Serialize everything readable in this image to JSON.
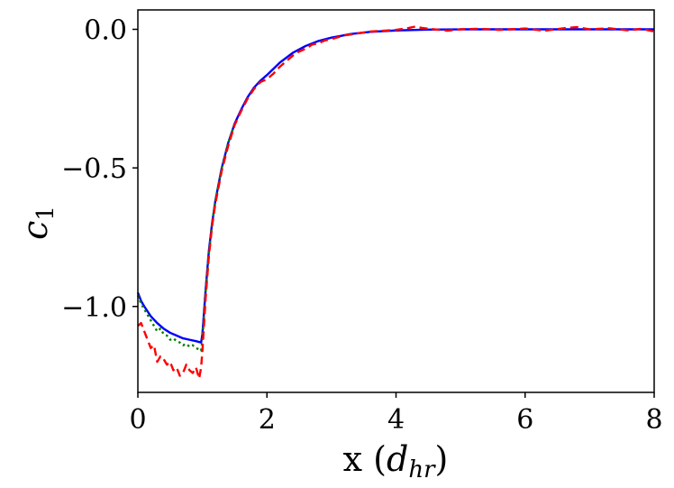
{
  "chart_data": {
    "type": "line",
    "xlabel": "x (d_hr)",
    "xlabel_parts": {
      "main": "x (",
      "italic": "d",
      "sub": "hr",
      "close": ")"
    },
    "ylabel": "c1",
    "ylabel_parts": {
      "italic": "c",
      "sub": "1"
    },
    "xlim": [
      0,
      8
    ],
    "ylim": [
      -1.31,
      0.07
    ],
    "x_ticks": [
      0,
      2,
      4,
      6,
      8
    ],
    "x_tick_labels": [
      "0",
      "2",
      "4",
      "6",
      "8"
    ],
    "y_ticks": [
      0.0,
      -0.5,
      -1.0
    ],
    "y_tick_labels": [
      "0.0",
      "−0.5",
      "−1.0"
    ],
    "grid": false,
    "series": [
      {
        "color": "#0000ff",
        "style": "solid",
        "x": [
          0,
          0.05,
          0.1,
          0.2,
          0.3,
          0.4,
          0.5,
          0.6,
          0.7,
          0.8,
          0.9,
          0.98,
          1.0,
          1.05,
          1.1,
          1.15,
          1.2,
          1.3,
          1.4,
          1.5,
          1.6,
          1.7,
          1.8,
          1.9,
          2.0,
          2.2,
          2.4,
          2.6,
          2.8,
          3.0,
          3.3,
          3.6,
          4.0,
          4.5,
          5.0,
          6.0,
          7.0,
          8.0
        ],
        "y": [
          -0.95,
          -0.98,
          -1.0,
          -1.035,
          -1.06,
          -1.08,
          -1.095,
          -1.105,
          -1.115,
          -1.12,
          -1.125,
          -1.13,
          -1.1,
          -0.94,
          -0.8,
          -0.7,
          -0.62,
          -0.5,
          -0.41,
          -0.34,
          -0.29,
          -0.245,
          -0.21,
          -0.185,
          -0.165,
          -0.12,
          -0.085,
          -0.06,
          -0.042,
          -0.03,
          -0.017,
          -0.009,
          -0.004,
          -0.001,
          0.0,
          0.0,
          0.0,
          0.0
        ]
      },
      {
        "color": "#008000",
        "style": "dotted",
        "x": [
          0,
          0.05,
          0.1,
          0.15,
          0.2,
          0.25,
          0.3,
          0.35,
          0.4,
          0.45,
          0.5,
          0.55,
          0.6,
          0.65,
          0.7,
          0.75,
          0.8,
          0.85,
          0.9,
          0.95,
          0.98,
          1.0,
          1.05,
          1.1,
          1.15,
          1.2,
          1.3,
          1.4,
          1.5
        ],
        "y": [
          -0.96,
          -0.99,
          -1.01,
          -1.03,
          -1.05,
          -1.07,
          -1.09,
          -1.08,
          -1.1,
          -1.105,
          -1.12,
          -1.115,
          -1.125,
          -1.13,
          -1.14,
          -1.135,
          -1.145,
          -1.14,
          -1.15,
          -1.155,
          -1.16,
          -1.12,
          -0.95,
          -0.81,
          -0.7,
          -0.62,
          -0.5,
          -0.41,
          -0.34
        ]
      },
      {
        "color": "#ff0000",
        "style": "dashed",
        "x": [
          0,
          0.05,
          0.1,
          0.15,
          0.2,
          0.25,
          0.3,
          0.35,
          0.4,
          0.45,
          0.5,
          0.55,
          0.6,
          0.65,
          0.7,
          0.75,
          0.8,
          0.85,
          0.9,
          0.95,
          0.98,
          1.0,
          1.05,
          1.1,
          1.15,
          1.2,
          1.3,
          1.4,
          1.5,
          1.6,
          1.7,
          1.8,
          1.9,
          2.0,
          2.1,
          2.2,
          2.3,
          2.4,
          2.5,
          2.6,
          2.7,
          2.8,
          2.9,
          3.0,
          3.2,
          3.4,
          3.6,
          3.8,
          4.0,
          4.2,
          4.3,
          4.4,
          4.6,
          4.8,
          5.0,
          5.3,
          5.6,
          6.0,
          6.3,
          6.6,
          6.8,
          7.0,
          7.3,
          7.6,
          7.8,
          8.0
        ],
        "y": [
          -1.07,
          -1.06,
          -1.09,
          -1.12,
          -1.15,
          -1.14,
          -1.2,
          -1.18,
          -1.19,
          -1.21,
          -1.2,
          -1.23,
          -1.22,
          -1.25,
          -1.24,
          -1.21,
          -1.23,
          -1.24,
          -1.22,
          -1.26,
          -1.22,
          -1.16,
          -0.97,
          -0.82,
          -0.71,
          -0.63,
          -0.51,
          -0.42,
          -0.345,
          -0.295,
          -0.25,
          -0.215,
          -0.19,
          -0.18,
          -0.16,
          -0.135,
          -0.115,
          -0.095,
          -0.08,
          -0.07,
          -0.055,
          -0.05,
          -0.04,
          -0.035,
          -0.022,
          -0.015,
          -0.008,
          -0.005,
          -0.002,
          0.005,
          0.01,
          0.005,
          0.0,
          -0.005,
          0.0,
          0.002,
          -0.002,
          0.003,
          -0.005,
          0.004,
          0.008,
          0.0,
          0.004,
          -0.004,
          0.002,
          -0.008
        ]
      }
    ]
  }
}
